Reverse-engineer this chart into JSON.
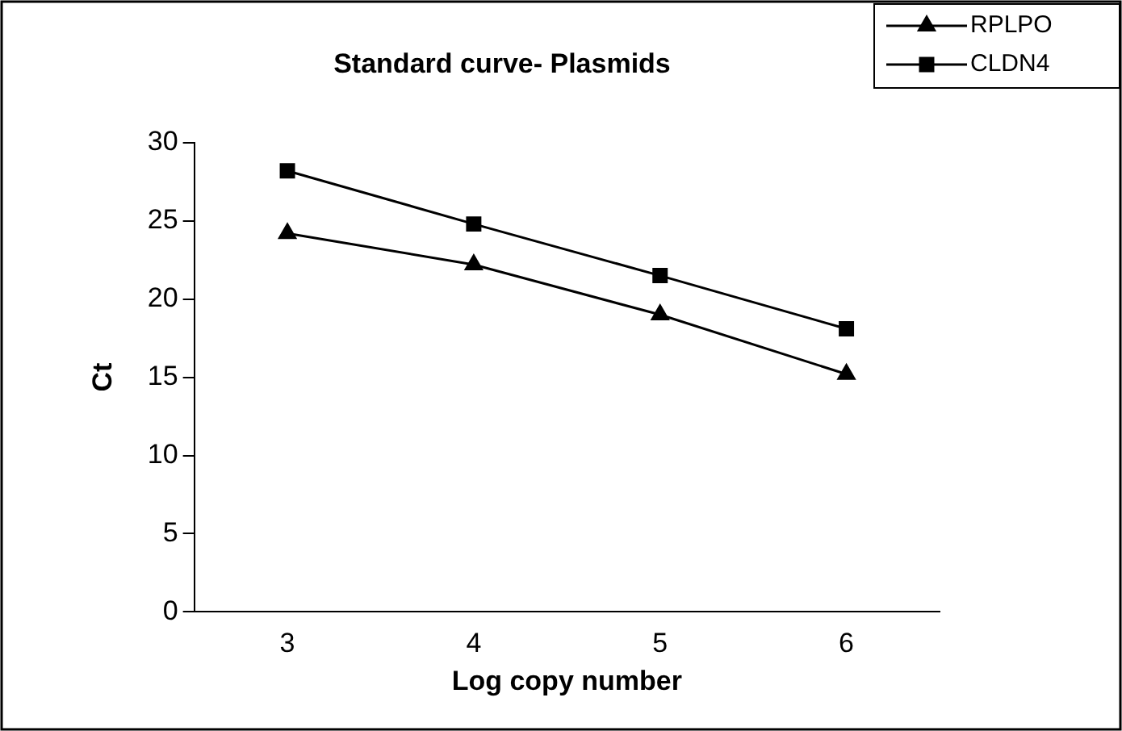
{
  "chart_data": {
    "type": "line",
    "title": "Standard curve- Plasmids",
    "xlabel": "Log copy number",
    "ylabel": "Ct",
    "categories": [
      "3",
      "4",
      "5",
      "6"
    ],
    "series": [
      {
        "name": "RPLPO",
        "color": "#000000",
        "marker": "triangle",
        "values": [
          24.2,
          22.2,
          19.0,
          15.2
        ]
      },
      {
        "name": "CLDN4",
        "color": "#000000",
        "marker": "square",
        "values": [
          28.2,
          24.8,
          21.5,
          18.1
        ]
      }
    ],
    "ylim": [
      0,
      30
    ],
    "yticks": [
      0,
      5,
      10,
      15,
      20,
      25,
      30
    ],
    "grid": false,
    "legend": "top right",
    "line_style": "solid"
  }
}
